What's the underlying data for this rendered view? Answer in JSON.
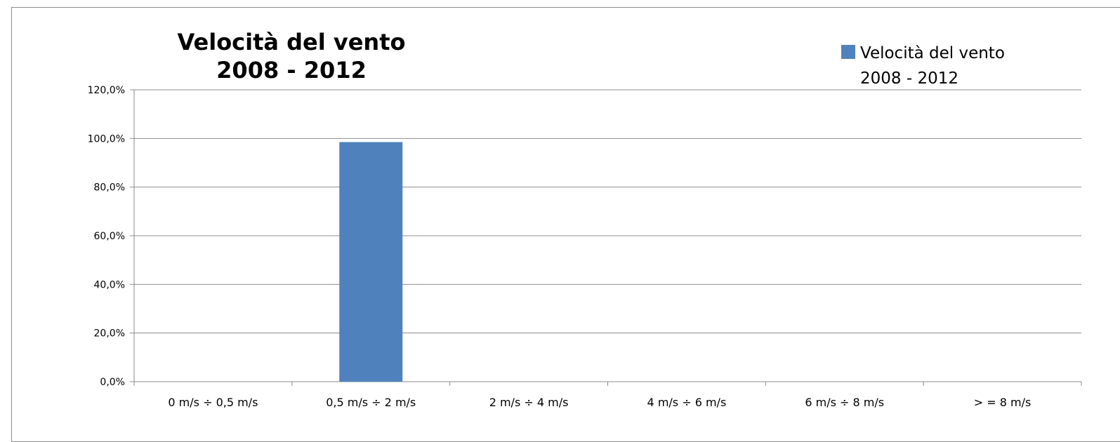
{
  "chart_data": {
    "type": "bar",
    "title_lines": [
      "Velocità del vento",
      "2008 - 2012"
    ],
    "categories": [
      "0 m/s ÷ 0,5 m/s",
      "0,5 m/s ÷ 2 m/s",
      "2 m/s ÷ 4 m/s",
      "4 m/s ÷ 6 m/s",
      "6 m/s ÷ 8 m/s",
      "> = 8 m/s"
    ],
    "series": [
      {
        "name_lines": [
          "Velocità del vento",
          "2008 - 2012"
        ],
        "values": [
          0,
          98.5,
          0,
          0,
          0,
          0
        ],
        "color": "#4f81bd"
      }
    ],
    "yticks": [
      "0,0%",
      "20,0%",
      "40,0%",
      "60,0%",
      "80,0%",
      "100,0%",
      "120,0%"
    ],
    "ylim": [
      0,
      120
    ],
    "ystep": 20,
    "unit": "%",
    "grid": true,
    "legend_position": "top-right"
  }
}
